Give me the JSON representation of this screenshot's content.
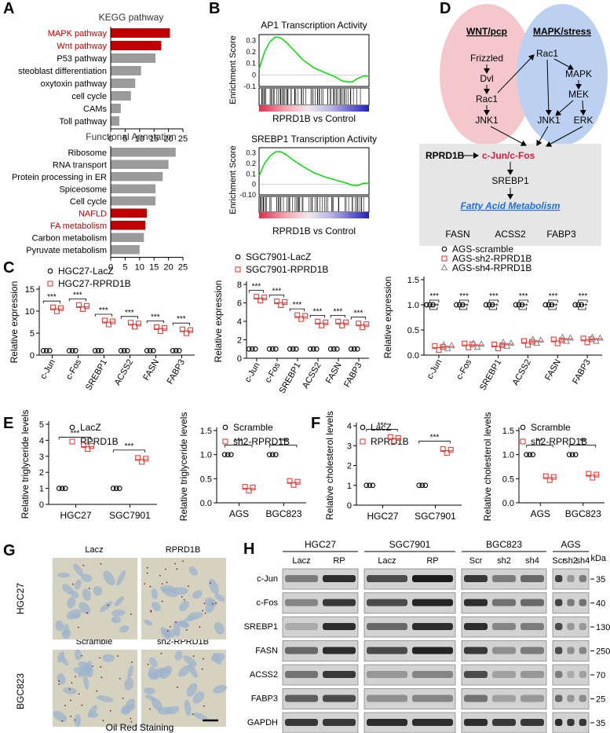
{
  "panels": {
    "A": "A",
    "B": "B",
    "C": "C",
    "D": "D",
    "E": "E",
    "F": "F",
    "G": "G",
    "H": "H"
  },
  "colors": {
    "red": "#c00000",
    "bar_red": "#c00000",
    "bar_gray": "#9b9b9b",
    "marker_red": "#e8413b",
    "marker_gray": "#8c8c8c",
    "gsea_line": "#00dd00",
    "wnt_fill": "#f3c7cc",
    "mapk_fill": "#bcd0f2",
    "box_fill": "#e6e6e6",
    "link_blue": "#1e6fd9"
  },
  "chart_data": [
    {
      "id": "A-kegg",
      "type": "bar",
      "orientation": "horizontal",
      "title": "KEGG pathway",
      "categories": [
        "MAPK pathway",
        "Wnt pathway",
        "P53 pathway",
        "steoblast differentiation",
        "oxytoxin pathway",
        "cell cycle",
        "CAMs",
        "Toll pathway"
      ],
      "values": [
        20.5,
        17.5,
        15.5,
        10.5,
        8.5,
        7,
        3.5,
        3
      ],
      "highlighted": [
        true,
        true,
        false,
        false,
        false,
        false,
        false,
        false
      ],
      "xticks": [
        "0",
        "5",
        "10",
        "15",
        "20",
        "25"
      ],
      "xlim": [
        0,
        25
      ]
    },
    {
      "id": "A-functional",
      "type": "bar",
      "orientation": "horizontal",
      "title": "Functional Annotation",
      "categories": [
        "Ribosome",
        "RNA transport",
        "Protein processing in ER",
        "Spiceosome",
        "Cell cycle",
        "NAFLD",
        "FA metabolism",
        "Carbon metabolism",
        "Pyruvate metabolism"
      ],
      "values": [
        22.5,
        20,
        18,
        15.5,
        15.5,
        12.5,
        12,
        11.5,
        10
      ],
      "highlighted": [
        false,
        false,
        false,
        false,
        false,
        true,
        true,
        false,
        false
      ],
      "xticks": [
        "0",
        "5",
        "10",
        "15",
        "20",
        "25"
      ],
      "xlim": [
        0,
        25
      ]
    },
    {
      "id": "B-ap1",
      "type": "line",
      "title": "AP1 Transcription Activity",
      "ylabel": "Enrichment Score",
      "xlabel": "RPRD1B vs Control",
      "yticks": [
        "0.3",
        "0.2",
        "0.1",
        "0",
        "-0.1"
      ],
      "ylim": [
        -0.1,
        0.35
      ],
      "x": [
        0,
        0.05,
        0.1,
        0.15,
        0.2,
        0.25,
        0.3,
        0.4,
        0.5,
        0.6,
        0.7,
        0.75,
        0.8,
        0.85,
        0.9,
        0.95,
        1
      ],
      "values": [
        0.05,
        0.2,
        0.29,
        0.33,
        0.32,
        0.28,
        0.23,
        0.13,
        0.06,
        0.02,
        -0.02,
        -0.05,
        -0.06,
        -0.06,
        -0.03,
        -0.01,
        -0.01
      ]
    },
    {
      "id": "B-srebp1",
      "type": "line",
      "title": "SREBP1 Transcription Activity",
      "ylabel": "Enrichment Score",
      "xlabel": "RPRD1B vs Control",
      "yticks": [
        "0.3",
        "0.2",
        "0.1",
        "0",
        "-0.10"
      ],
      "ylim": [
        -0.1,
        0.35
      ],
      "x": [
        0,
        0.05,
        0.1,
        0.15,
        0.2,
        0.25,
        0.3,
        0.4,
        0.5,
        0.6,
        0.7,
        0.8,
        0.85,
        0.9,
        0.95,
        1
      ],
      "values": [
        0.08,
        0.2,
        0.27,
        0.31,
        0.31,
        0.28,
        0.24,
        0.17,
        0.11,
        0.07,
        0.04,
        0.01,
        -0.01,
        -0.01,
        0.01,
        0.01
      ]
    },
    {
      "id": "C-hgc27",
      "type": "scatter",
      "ylabel": "Relative expression",
      "legend": [
        "HGC27-LacZ",
        "HGC27-RPRD1B"
      ],
      "categories": [
        "c-Jun",
        "c-Fos",
        "SREBP1",
        "ACSS2",
        "FASN",
        "FABP3"
      ],
      "yticks": [
        "0",
        "5",
        "10",
        "15"
      ],
      "ylim": [
        0,
        15
      ],
      "series": [
        {
          "name": "HGC27-LacZ",
          "values": [
            1,
            1,
            1,
            1,
            1,
            1
          ]
        },
        {
          "name": "HGC27-RPRD1B",
          "values": [
            10.5,
            11,
            7.5,
            7,
            6,
            5.5
          ]
        }
      ],
      "significance": [
        "***",
        "***",
        "***",
        "***",
        "***",
        "***"
      ]
    },
    {
      "id": "C-sgc7901",
      "type": "scatter",
      "ylabel": "Relative expression",
      "legend": [
        "SGC7901-LacZ",
        "SGC7901-RPRD1B"
      ],
      "categories": [
        "c-Jun",
        "c-Fos",
        "SREBP1",
        "ACSS2",
        "FASN",
        "FABP3"
      ],
      "yticks": [
        "0",
        "2",
        "4",
        "6",
        "8"
      ],
      "ylim": [
        0,
        8
      ],
      "series": [
        {
          "name": "SGC7901-LacZ",
          "values": [
            1,
            1,
            1,
            1,
            1,
            1
          ]
        },
        {
          "name": "SGC7901-RPRD1B",
          "values": [
            6.5,
            6,
            4.5,
            3.8,
            3.8,
            3.6
          ]
        }
      ],
      "significance": [
        "***",
        "***",
        "***",
        "***",
        "***",
        "***"
      ]
    },
    {
      "id": "C-ags",
      "type": "scatter",
      "ylabel": "Relative expression",
      "legend": [
        "AGS-scramble",
        "AGS-sh2-RPRD1B",
        "AGS-sh4-RPRD1B"
      ],
      "categories": [
        "c-Jun",
        "c-Fos",
        "SREBP1",
        "ACSS2",
        "FASN",
        "FABP3"
      ],
      "yticks": [
        "0.0",
        "0.5",
        "1.0",
        "1.5"
      ],
      "ylim": [
        0,
        1.5
      ],
      "series": [
        {
          "name": "AGS-scramble",
          "values": [
            1,
            1,
            1,
            1,
            1,
            1
          ]
        },
        {
          "name": "AGS-sh2-RPRD1B",
          "values": [
            0.15,
            0.2,
            0.18,
            0.25,
            0.28,
            0.3
          ]
        },
        {
          "name": "AGS-sh4-RPRD1B",
          "values": [
            0.17,
            0.2,
            0.22,
            0.28,
            0.32,
            0.32
          ]
        }
      ],
      "significance": [
        "***",
        "***",
        "***",
        "***",
        "***",
        "***"
      ]
    },
    {
      "id": "E-tg-over",
      "type": "scatter",
      "ylabel": "Relative triglyceride levels",
      "legend": [
        "LacZ",
        "RPRD1B"
      ],
      "categories": [
        "HGC27",
        "SGC7901"
      ],
      "yticks": [
        "0",
        "1",
        "2",
        "3",
        "4",
        "5"
      ],
      "ylim": [
        0,
        5
      ],
      "series": [
        {
          "name": "LacZ",
          "values": [
            1,
            1
          ]
        },
        {
          "name": "RPRD1B",
          "values": [
            3.6,
            2.8
          ]
        }
      ],
      "significance": [
        "***",
        "***"
      ]
    },
    {
      "id": "E-tg-knock",
      "type": "scatter",
      "ylabel": "Relative triglyceride levels",
      "legend": [
        "Scramble",
        "sh2-RPRD1B"
      ],
      "categories": [
        "AGS",
        "BGC823"
      ],
      "yticks": [
        "0.0",
        "0.5",
        "1.0",
        "1.5"
      ],
      "ylim": [
        0,
        1.5
      ],
      "series": [
        {
          "name": "Scramble",
          "values": [
            1,
            1
          ]
        },
        {
          "name": "sh2-RPRD1B",
          "values": [
            0.3,
            0.42
          ]
        }
      ],
      "significance": [
        "***",
        "***"
      ]
    },
    {
      "id": "F-chol-over",
      "type": "scatter",
      "ylabel": "Relative cholesterol levels",
      "legend": [
        "LacZ",
        "RPRD1B"
      ],
      "categories": [
        "HGC27",
        "SGC7901"
      ],
      "yticks": [
        "0",
        "1",
        "2",
        "3",
        "4"
      ],
      "ylim": [
        0,
        4
      ],
      "series": [
        {
          "name": "LacZ",
          "values": [
            1,
            1
          ]
        },
        {
          "name": "RPRD1B",
          "values": [
            3.35,
            2.75
          ]
        }
      ],
      "significance": [
        "***",
        "***"
      ]
    },
    {
      "id": "F-chol-knock",
      "type": "scatter",
      "ylabel": "Relative cholesterol levels",
      "legend": [
        "Scramble",
        "sh2-RPRD1B"
      ],
      "categories": [
        "AGS",
        "BGC823"
      ],
      "yticks": [
        "0.0",
        "0.5",
        "1.0",
        "1.5"
      ],
      "ylim": [
        0,
        1.5
      ],
      "series": [
        {
          "name": "Scramble",
          "values": [
            1,
            1
          ]
        },
        {
          "name": "sh2-RPRD1B",
          "values": [
            0.52,
            0.57
          ]
        }
      ],
      "significance": [
        "**",
        "**"
      ]
    }
  ],
  "diagram": {
    "wnt_title": "WNT/pcp",
    "mapk_title": "MAPK/stress",
    "wnt_nodes": [
      "Frizzled",
      "Dvl",
      "Rac1",
      "JNK1"
    ],
    "mapk_nodes": [
      "Rac1",
      "MAPK",
      "MEK",
      "JNK1",
      "ERK"
    ],
    "rprd1b": "RPRD1B",
    "cjun_cfos": "c-Jun/c-Fos",
    "srebp1": "SREBP1",
    "fa_metabolism": "Fatty Acid Metabolism",
    "genes": [
      "FASN",
      "ACSS2",
      "FABP3"
    ]
  },
  "staining": {
    "top_labels": [
      "Lacz",
      "RPRD1B"
    ],
    "bottom_labels": [
      "Scramble",
      "sh2-RPRD1B"
    ],
    "row_labels": [
      "HGC27",
      "BGC823"
    ],
    "caption": "Oil Red Staining"
  },
  "blot": {
    "groups": [
      {
        "name": "HGC27",
        "lanes": [
          "Lacz",
          "RP"
        ]
      },
      {
        "name": "SGC7901",
        "lanes": [
          "Lacz",
          "RP"
        ]
      },
      {
        "name": "BGC823",
        "lanes": [
          "Scr",
          "sh2",
          "sh4"
        ]
      },
      {
        "name": "AGS",
        "lanes": [
          "Scr",
          "sh2",
          "sh4"
        ]
      }
    ],
    "kda_label": "kDa",
    "proteins": [
      "c-Jun",
      "c-Fos",
      "SREBP1",
      "FASN",
      "ACSS2",
      "FABP3",
      "GAPDH"
    ],
    "markers": [
      "35",
      "40",
      "130",
      "250",
      "70",
      "25",
      "35"
    ]
  }
}
